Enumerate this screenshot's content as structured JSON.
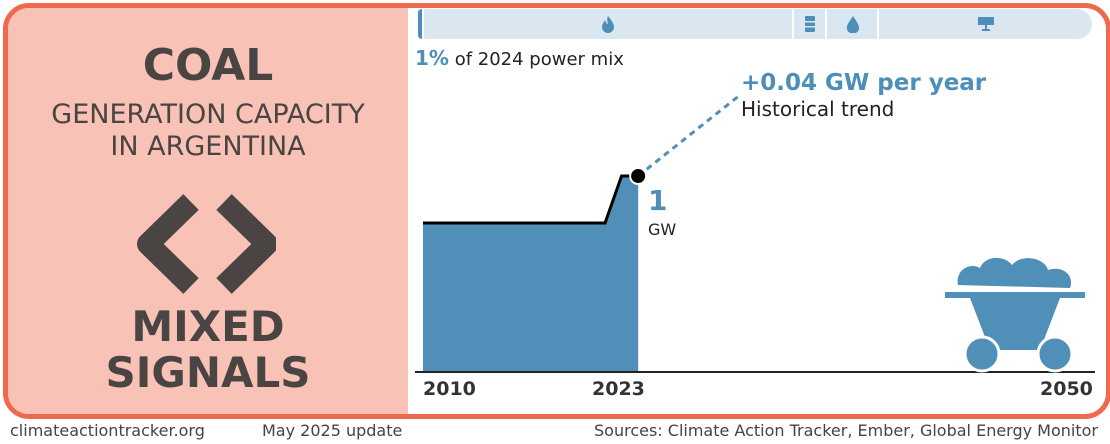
{
  "panel": {
    "fuel": "COAL",
    "subtitle_line1": "GENERATION CAPACITY",
    "subtitle_line2": "IN ARGENTINA",
    "signal_icon": "chevrons-left-right-icon",
    "signal_line1": "MIXED",
    "signal_line2": "SIGNALS",
    "panel_color": "#f8c3b6",
    "border_color": "#ef6a4c"
  },
  "power_mix": {
    "share": "1%",
    "label": "of 2024 power mix",
    "segments": [
      {
        "icon": "coal-icon"
      },
      {
        "icon": "flame-icon"
      },
      {
        "icon": "oil-barrel-icon"
      },
      {
        "icon": "water-drop-icon"
      },
      {
        "icon": "solar-panel-icon"
      }
    ]
  },
  "trend": {
    "rate": "+0.04 GW per year",
    "label": "Historical trend"
  },
  "current": {
    "value": "1",
    "unit": "GW"
  },
  "chart_data": {
    "type": "area",
    "x": [
      2010,
      2021,
      2022,
      2023
    ],
    "values": [
      0.76,
      0.76,
      1.0,
      1.0
    ],
    "unit": "GW",
    "xlim": [
      2010,
      2050
    ],
    "ylim": [
      0,
      1.9
    ],
    "tick_labels": [
      "2010",
      "2023",
      "2050"
    ],
    "trend_per_year": 0.04,
    "color": "#4f8fb8"
  },
  "footer": {
    "site": "climateactiontracker.org",
    "update": "May 2025 update",
    "sources": "Sources: Climate Action Tracker, Ember, Global Energy Monitor"
  }
}
